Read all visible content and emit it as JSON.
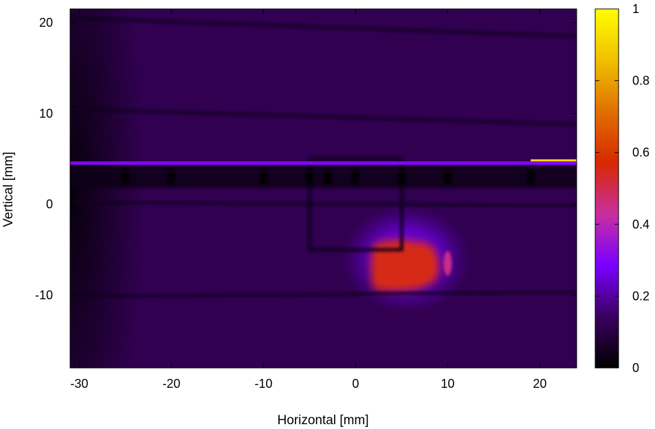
{
  "chart_data": [
    {
      "type": "heatmap",
      "title": "",
      "xlabel": "Horizontal [mm]",
      "ylabel": "Vertical [mm]",
      "xlim": [
        -31,
        24
      ],
      "ylim": [
        -18,
        21.5
      ],
      "xticks": [
        -30,
        -20,
        -10,
        0,
        10,
        20
      ],
      "xtick_labels": [
        "-30",
        "-20",
        "-10",
        "0",
        "10",
        "20"
      ],
      "yticks": [
        -10,
        0,
        10,
        20
      ],
      "ytick_labels": [
        "-10",
        "0",
        "10",
        "20"
      ],
      "colorbar": {
        "range": [
          0,
          1
        ],
        "ticks": [
          0,
          0.2,
          0.4,
          0.6,
          0.8,
          1
        ],
        "tick_labels": [
          "0",
          "0.2",
          "0.4",
          "0.6",
          "0.8",
          "1"
        ],
        "colormap": [
          "#000000",
          "#3a0060",
          "#7a00ff",
          "#c82fa0",
          "#d82800",
          "#e07000",
          "#f0c000",
          "#ffff00"
        ]
      },
      "background_intensity": 0.12,
      "grid_wires": {
        "vertical_x": [
          -20,
          -10,
          0,
          10,
          19
        ],
        "horizontal_y": [
          20,
          10,
          0,
          -10
        ],
        "intensity": 0.04
      },
      "bright_line": {
        "y": 4.5,
        "intensity": 0.3,
        "x_range": [
          -31,
          24
        ]
      },
      "shadow_band": {
        "y": 3,
        "intensity": 0.03
      },
      "beam_spot": {
        "x": 6,
        "y": -6.5,
        "peak_intensity": 0.55,
        "halo_intensity": 0.25
      },
      "hot_segment": {
        "y": 4.8,
        "x_range": [
          19,
          24
        ],
        "intensity": 0.9
      }
    }
  ]
}
